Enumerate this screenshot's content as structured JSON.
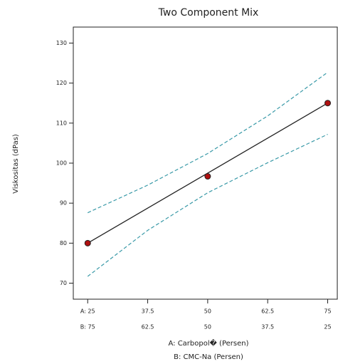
{
  "chart_data": {
    "type": "line",
    "title": "Two Component Mix",
    "ylabel": "Viskositas (dPas)",
    "xlabel": "A: Carbopol� (Persen)",
    "xlabel2": "B: CMC-Na (Persen)",
    "xlim": [
      22,
      77
    ],
    "ylim": [
      66,
      134
    ],
    "xticks": [
      {
        "value": 25,
        "label": "A: 25"
      },
      37.5,
      50,
      62.5,
      75
    ],
    "x2ticks": [
      {
        "value": 75,
        "label": "B: 75"
      },
      62.5,
      50,
      37.5,
      25
    ],
    "yticks": [
      70,
      80,
      90,
      100,
      110,
      120,
      130
    ],
    "series": [
      {
        "color": "#222222",
        "dash": false,
        "x": [
          25,
          75
        ],
        "values": [
          80,
          115
        ]
      },
      {
        "color": "#3a9aa8",
        "dash": true,
        "x": [
          25,
          37.5,
          50,
          62.5,
          75
        ],
        "values": [
          87.6,
          94.5,
          102.4,
          111.8,
          122.7
        ]
      },
      {
        "color": "#3a9aa8",
        "dash": true,
        "x": [
          25,
          37.5,
          50,
          62.5,
          75
        ],
        "values": [
          71.7,
          83.2,
          92.6,
          100.1,
          107.2
        ]
      }
    ],
    "points": {
      "color": "#b01010",
      "x": [
        25,
        50,
        75
      ],
      "values": [
        80,
        96.7,
        115
      ]
    }
  }
}
